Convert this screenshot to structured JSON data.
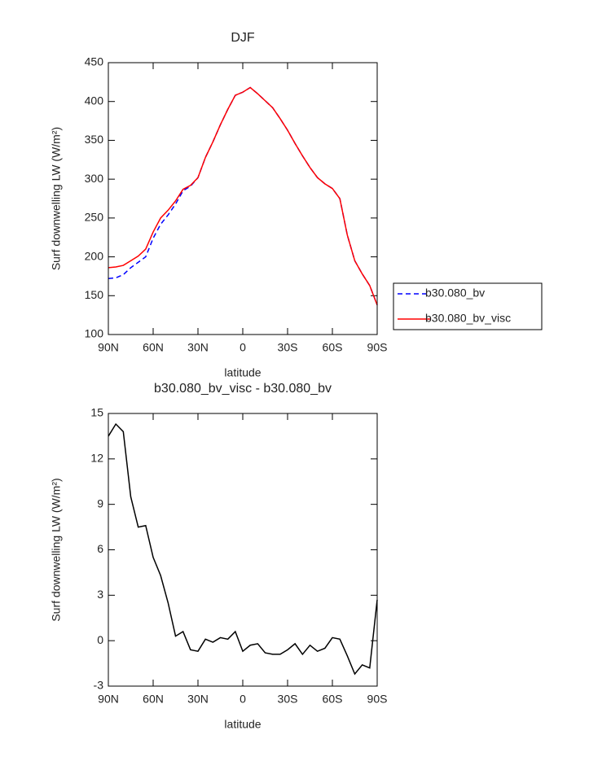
{
  "chart_data": [
    {
      "type": "line",
      "title": "DJF",
      "x_label": "latitude",
      "y_label": "Surf downwelling LW (W/m²)",
      "x": [
        90,
        85,
        80,
        75,
        70,
        65,
        60,
        55,
        50,
        45,
        40,
        35,
        30,
        25,
        20,
        15,
        10,
        5,
        0,
        -5,
        -10,
        -15,
        -20,
        -25,
        -30,
        -35,
        -40,
        -45,
        -50,
        -55,
        -60,
        -65,
        -70,
        -75,
        -80,
        -85,
        -90
      ],
      "xlim": [
        90,
        -90
      ],
      "xticks": [
        {
          "value": 90,
          "label": "90N"
        },
        {
          "value": 60,
          "label": "60N"
        },
        {
          "value": 30,
          "label": "30N"
        },
        0,
        {
          "value": -30,
          "label": "30S"
        },
        {
          "value": -60,
          "label": "60S"
        },
        {
          "value": -90,
          "label": "90S"
        }
      ],
      "ylim": [
        100,
        450
      ],
      "yticks": [
        100,
        150,
        200,
        250,
        300,
        350,
        400,
        450
      ],
      "legend": "right",
      "series": [
        {
          "name": "b30.080_bv",
          "color": "#0000ff",
          "line_style": "dashed",
          "values": [
            172,
            173,
            177,
            186,
            193,
            200,
            224,
            242,
            254,
            268,
            285,
            291,
            302,
            328,
            348,
            370,
            390,
            408,
            412,
            418,
            410,
            401,
            392,
            378,
            363,
            346,
            330,
            315,
            302,
            294,
            288,
            275,
            228,
            195,
            178,
            163,
            138
          ]
        },
        {
          "name": "b30.080_bv_visc",
          "color": "#ff0000",
          "line_style": "solid",
          "values": [
            186,
            187,
            189,
            195,
            201,
            210,
            232,
            250,
            260,
            272,
            287,
            292,
            302,
            328,
            348,
            370,
            390,
            408,
            412,
            418,
            410,
            401,
            392,
            378,
            363,
            346,
            330,
            315,
            302,
            294,
            288,
            275,
            228,
            195,
            178,
            163,
            138
          ]
        }
      ]
    },
    {
      "type": "line",
      "title": "b30.080_bv_visc - b30.080_bv",
      "x_label": "latitude",
      "y_label": "Surf downwelling LW (W/m²)",
      "x": [
        90,
        85,
        80,
        75,
        70,
        65,
        60,
        55,
        50,
        45,
        40,
        35,
        30,
        25,
        20,
        15,
        10,
        5,
        0,
        -5,
        -10,
        -15,
        -20,
        -25,
        -30,
        -35,
        -40,
        -45,
        -50,
        -55,
        -60,
        -65,
        -70,
        -75,
        -80,
        -85,
        -90
      ],
      "xlim": [
        90,
        -90
      ],
      "xticks": [
        {
          "value": 90,
          "label": "90N"
        },
        {
          "value": 60,
          "label": "60N"
        },
        {
          "value": 30,
          "label": "30N"
        },
        0,
        {
          "value": -30,
          "label": "30S"
        },
        {
          "value": -60,
          "label": "60S"
        },
        {
          "value": -90,
          "label": "90S"
        }
      ],
      "ylim": [
        -3,
        15
      ],
      "yticks": [
        -3,
        0,
        3,
        6,
        9,
        12,
        15
      ],
      "color": "#000000",
      "values": [
        13.5,
        14.3,
        13.8,
        9.5,
        7.5,
        7.6,
        5.5,
        4.3,
        2.5,
        0.3,
        0.6,
        -0.6,
        -0.7,
        0.1,
        -0.1,
        0.2,
        0.1,
        0.6,
        -0.7,
        -0.3,
        -0.2,
        -0.8,
        -0.9,
        -0.9,
        -0.6,
        -0.2,
        -0.9,
        -0.3,
        -0.7,
        -0.5,
        0.2,
        0.1,
        -1,
        -2.2,
        -1.6,
        -1.8,
        2.7
      ]
    }
  ]
}
